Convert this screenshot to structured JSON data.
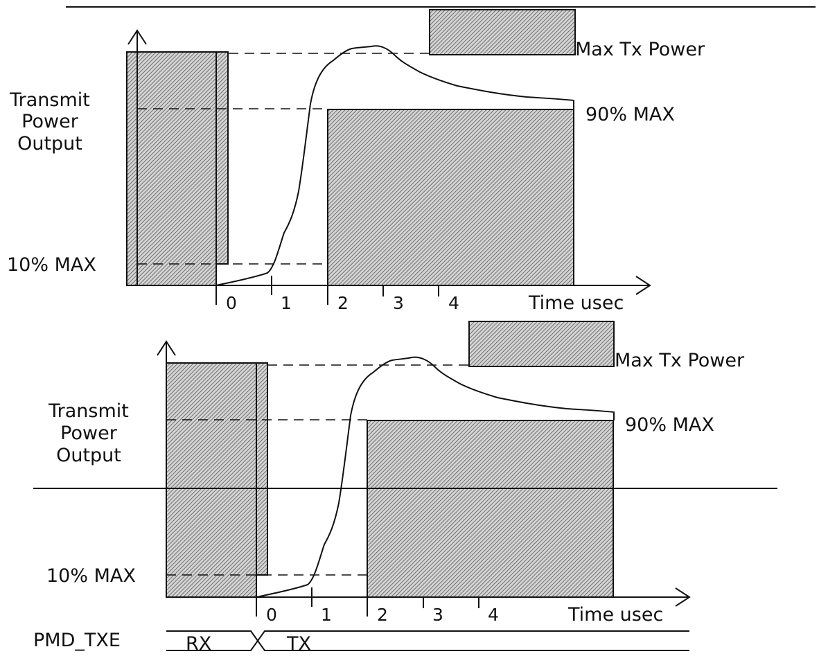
{
  "panel_top": {
    "ylabel": [
      "Transmit",
      "Power",
      "Output"
    ],
    "max_label": "Max Tx Power",
    "level90_label": "90% MAX",
    "level10_label": "10% MAX",
    "xlabel": "Time usec",
    "ticks": [
      "0",
      "1",
      "2",
      "3",
      "4"
    ]
  },
  "panel_bottom": {
    "ylabel": [
      "Transmit",
      "Power",
      "Output"
    ],
    "max_label": "Max Tx Power",
    "level90_label": "90% MAX",
    "level10_label": "10% MAX",
    "xlabel": "Time usec",
    "ticks": [
      "0",
      "1",
      "2",
      "3",
      "4"
    ]
  },
  "pmd": {
    "label": "PMD_TXE",
    "rx_label": "RX",
    "tx_label": "TX"
  },
  "colors": {
    "ink": "#111111",
    "hatch_bg": "#d4d4d4"
  }
}
